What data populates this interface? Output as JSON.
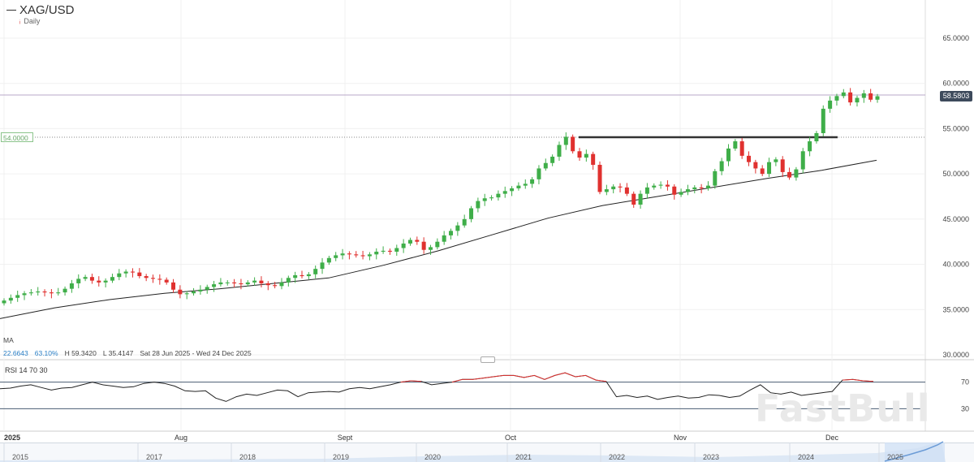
{
  "header": {
    "symbol": "XAG/USD",
    "period": "Daily"
  },
  "price_tag": "58.5803",
  "level_tag": "54.0000",
  "indicator": {
    "name": "MA",
    "value": "22.6643",
    "pct": "63.10%",
    "high": "H 59.3420",
    "low": "L 35.4147",
    "range": "Sat 28 Jun 2025 - Wed 24 Dec 2025"
  },
  "rsi": {
    "label": "RSI  14  70  30"
  },
  "watermark": "FastBull",
  "colors": {
    "up": "#3fae49",
    "down": "#e0312f",
    "ma": "#222222",
    "rsi": "#222222",
    "rsi_over": "#e0312f",
    "band": "#4a5d72"
  },
  "chart_data": {
    "type": "candlestick",
    "y_axis": {
      "ylim": [
        30,
        65
      ],
      "ticks": [
        "65.0000",
        "60.0000",
        "55.0000",
        "50.0000",
        "45.0000",
        "40.0000",
        "35.0000",
        "30.0000"
      ]
    },
    "x_axis": {
      "labels": [
        "2025",
        "Aug",
        "Sept",
        "Oct",
        "Nov",
        "Dec"
      ]
    },
    "timeline_labels": [
      "2015",
      "2017",
      "2018",
      "2019",
      "2020",
      "2021",
      "2022",
      "2023",
      "2024",
      "2025"
    ],
    "rsi_levels": [
      "70",
      "30"
    ],
    "close": [
      36.0,
      36.3,
      36.6,
      36.8,
      36.9,
      37.0,
      36.9,
      36.8,
      36.9,
      37.3,
      37.9,
      38.4,
      38.6,
      38.2,
      38.0,
      38.2,
      38.6,
      39.0,
      39.2,
      39.1,
      38.7,
      38.5,
      38.4,
      38.3,
      38.0,
      37.2,
      36.7,
      36.8,
      37.0,
      37.2,
      37.5,
      37.8,
      38.0,
      38.0,
      37.9,
      37.8,
      38.0,
      38.2,
      37.9,
      37.7,
      37.6,
      38.0,
      38.5,
      38.8,
      38.7,
      38.9,
      39.5,
      40.2,
      40.7,
      41.0,
      41.2,
      41.1,
      41.0,
      40.9,
      41.1,
      41.4,
      41.5,
      41.4,
      41.8,
      42.3,
      42.7,
      42.5,
      41.6,
      41.9,
      42.5,
      43.2,
      43.7,
      44.3,
      45.0,
      46.2,
      47.0,
      47.3,
      47.4,
      47.8,
      48.1,
      48.4,
      48.7,
      48.9,
      49.4,
      50.6,
      51.2,
      51.9,
      53.2,
      54.1,
      52.5,
      51.8,
      52.2,
      51.0,
      48.0,
      48.3,
      48.6,
      48.5,
      47.8,
      46.6,
      47.8,
      48.5,
      48.7,
      48.8,
      48.6,
      47.7,
      48.0,
      48.3,
      48.5,
      48.4,
      48.7,
      50.3,
      51.4,
      52.8,
      53.6,
      52.0,
      51.3,
      50.6,
      50.0,
      51.3,
      51.6,
      50.2,
      49.6,
      50.5,
      52.5,
      53.6,
      54.5,
      57.2,
      58.1,
      58.6,
      59.0,
      57.9,
      58.4,
      58.9,
      58.2,
      58.58
    ],
    "ma": [
      34.0,
      35.2,
      36.1,
      36.8,
      37.3,
      37.9,
      38.5,
      39.9,
      41.5,
      43.3,
      45.1,
      46.5,
      47.5,
      48.5,
      49.5,
      50.4,
      51.5
    ],
    "rsi": [
      60,
      61,
      64,
      66,
      62,
      58,
      61,
      62,
      66,
      70,
      66,
      64,
      62,
      63,
      68,
      70,
      68,
      64,
      57,
      56,
      57,
      46,
      41,
      48,
      52,
      50,
      54,
      58,
      57,
      48,
      54,
      55,
      56,
      55,
      60,
      62,
      60,
      63,
      66,
      70,
      72,
      71,
      66,
      68,
      70,
      74,
      74,
      76,
      78,
      80,
      80,
      77,
      80,
      74,
      80,
      84,
      78,
      80,
      73,
      71,
      48,
      50,
      47,
      49,
      44,
      47,
      49,
      46,
      47,
      51,
      50,
      47,
      49,
      58,
      66,
      54,
      52,
      55,
      50,
      52,
      54,
      56,
      73,
      74,
      72,
      71
    ]
  }
}
